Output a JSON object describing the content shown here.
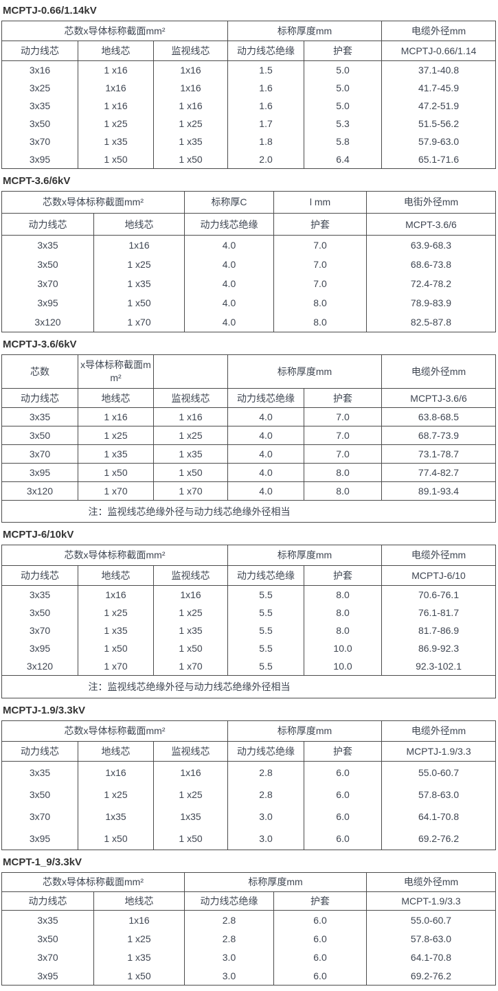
{
  "page": {
    "background": "#ffffff",
    "border_color": "#4a4a4a",
    "text_color": "#3e4551",
    "title_color": "#333333"
  },
  "tables": [
    {
      "title": "MCPTJ-0.66/1.14kV",
      "group_headers": [
        {
          "label": "芯数x导体标称截面mm²",
          "span": 3
        },
        {
          "label": "标称厚度mm",
          "span": 2
        },
        {
          "label": "电缆外径mm",
          "span": 1
        }
      ],
      "col_headers": [
        "动力线芯",
        "地线芯",
        "监视线芯",
        "动力线芯绝缘",
        "护套",
        "MCPTJ-0.66/1.14"
      ],
      "rows": [
        [
          "3x16",
          "1 x16",
          "1x16",
          "1.5",
          "5.0",
          "37.1-40.8"
        ],
        [
          "3x25",
          "1x16",
          "1x16",
          "1.6",
          "5.0",
          "41.7-45.9"
        ],
        [
          "3x35",
          "1 x16",
          "1 x16",
          "1.6",
          "5.0",
          "47.2-51.9"
        ],
        [
          "3x50",
          "1 x25",
          "1 x25",
          "1.7",
          "5.3",
          "51.5-56.2"
        ],
        [
          "3x70",
          "1 x35",
          "1 x35",
          "1.8",
          "5.8",
          "57.9-63.0"
        ],
        [
          "3x95",
          "1 x50",
          "1 x50",
          "2.0",
          "6.4",
          "65.1-71.6"
        ]
      ],
      "note": null
    },
    {
      "title": "MCPT-3.6/6kV",
      "group_headers": [
        {
          "label": "芯数x导体标称截面mm²",
          "span": 2
        },
        {
          "label": "标称厚C",
          "span": 1
        },
        {
          "label": "l mm",
          "span": 1
        },
        {
          "label": "电街外径mm",
          "span": 1
        }
      ],
      "col_headers": [
        "动力线芯",
        "地线芯",
        "动力线芯绝缘",
        "护套",
        "MCPT-3.6/6"
      ],
      "rows": [
        [
          "3x35",
          "1x16",
          "4.0",
          "7.0",
          "63.9-68.3"
        ],
        [
          "3x50",
          "1 x25",
          "4.0",
          "7.0",
          "68.6-73.8"
        ],
        [
          "3x70",
          "1 x35",
          "4.0",
          "7.0",
          "72.4-78.2"
        ],
        [
          "3x95",
          "1 x50",
          "4.0",
          "8.0",
          "78.9-83.9"
        ],
        [
          "3x120",
          "1 x70",
          "4.0",
          "8.0",
          "82.5-87.8"
        ]
      ],
      "note": null
    },
    {
      "title": "MCPTJ-3.6/6kV",
      "group_headers": [
        {
          "label": "芯数",
          "span": 1
        },
        {
          "label": "x导体标称截面m\nm²",
          "span": 1
        },
        {
          "label": "",
          "span": 1
        },
        {
          "label": "标称厚度mm",
          "span": 2
        },
        {
          "label": "电缆外径mm",
          "span": 1
        }
      ],
      "col_headers": [
        "动力线芯",
        "地线芯",
        "监视线芯",
        "动力线芯绝缘",
        "护套",
        "MCPTJ-3.6/6"
      ],
      "rows": [
        [
          "3x35",
          "1 x16",
          "1 x16",
          "4.0",
          "7.0",
          "63.8-68.5"
        ],
        [
          "3x50",
          "1 x25",
          "1 x25",
          "4.0",
          "7.0",
          "68.7-73.9"
        ],
        [
          "3x70",
          "1 x35",
          "1 x35",
          "4.0",
          "7.0",
          "73.1-78.7"
        ],
        [
          "3x95",
          "1 x50",
          "1 x50",
          "4.0",
          "8.0",
          "77.4-82.7"
        ],
        [
          "3x120",
          "1 x70",
          "1 x70",
          "4.0",
          "8.0",
          "89.1-93.4"
        ]
      ],
      "note": "注：监视线芯绝缘外径与动力线芯绝缘外径相当"
    },
    {
      "title": "MCPTJ-6/10kV",
      "group_headers": [
        {
          "label": "芯数x导体标称截面mm²",
          "span": 3
        },
        {
          "label": "标称厚度mm",
          "span": 2
        },
        {
          "label": "电缆外径mm",
          "span": 1
        }
      ],
      "col_headers": [
        "动力线芯",
        "地线芯",
        "监视线芯",
        "动力线芯绝缘",
        "护套",
        "MCPTJ-6/10"
      ],
      "rows": [
        [
          "3x35",
          "1x16",
          "1x16",
          "5.5",
          "8.0",
          "70.6-76.1"
        ],
        [
          "3x50",
          "1 x25",
          "1 x25",
          "5.5",
          "8.0",
          "76.1-81.7"
        ],
        [
          "3x70",
          "1 x35",
          "1 x35",
          "5.5",
          "8.0",
          "81.7-86.9"
        ],
        [
          "3x95",
          "1 x50",
          "1 x50",
          "5.5",
          "10.0",
          "86.9-92.3"
        ],
        [
          "3x120",
          "1 x70",
          "1 x70",
          "5.5",
          "10.0",
          "92.3-102.1"
        ]
      ],
      "note": "注：监视线芯绝缘外径与动力线芯绝缘外径相当"
    },
    {
      "title": "MCPTJ-1.9/3.3kV",
      "group_headers": [
        {
          "label": "芯数x导体标称截面mm²",
          "span": 3
        },
        {
          "label": "标称厚度mm",
          "span": 2
        },
        {
          "label": "电缆外径mm",
          "span": 1
        }
      ],
      "col_headers": [
        "动力线芯",
        "地线芯",
        "监视线芯",
        "动力线芯绝缘",
        "护套",
        "MCPTJ-1.9/3.3"
      ],
      "rows": [
        [
          "3x35",
          "1x16",
          "1x16",
          "2.8",
          "6.0",
          "55.0-60.7"
        ],
        [
          "3x50",
          "1 x25",
          "1 x25",
          "2.8",
          "6.0",
          "57.8-63.0"
        ],
        [
          "3x70",
          "1x35",
          "1x35",
          "3.0",
          "6.0",
          "64.1-70.8"
        ],
        [
          "3x95",
          "1 x50",
          "1 x50",
          "3.0",
          "6.0",
          "69.2-76.2"
        ]
      ],
      "note": null
    },
    {
      "title": "MCPT-1_9/3.3kV",
      "group_headers": [
        {
          "label": "芯数x导体标称截面mm²",
          "span": 2
        },
        {
          "label": "标称厚度mm",
          "span": 2
        },
        {
          "label": "电缆外径mm",
          "span": 1
        }
      ],
      "col_headers": [
        "动力线芯",
        "地线芯",
        "动力线芯绝缘",
        "护套",
        "MCPT-1.9/3.3"
      ],
      "rows": [
        [
          "3x35",
          "1x16",
          "2.8",
          "6.0",
          "55.0-60.7"
        ],
        [
          "3x50",
          "1 x25",
          "2.8",
          "6.0",
          "57.8-63.0"
        ],
        [
          "3x70",
          "1 x35",
          "3.0",
          "6.0",
          "64.1-70.8"
        ],
        [
          "3x95",
          "1 x50",
          "3.0",
          "6.0",
          "69.2-76.2"
        ]
      ],
      "note": null
    }
  ]
}
